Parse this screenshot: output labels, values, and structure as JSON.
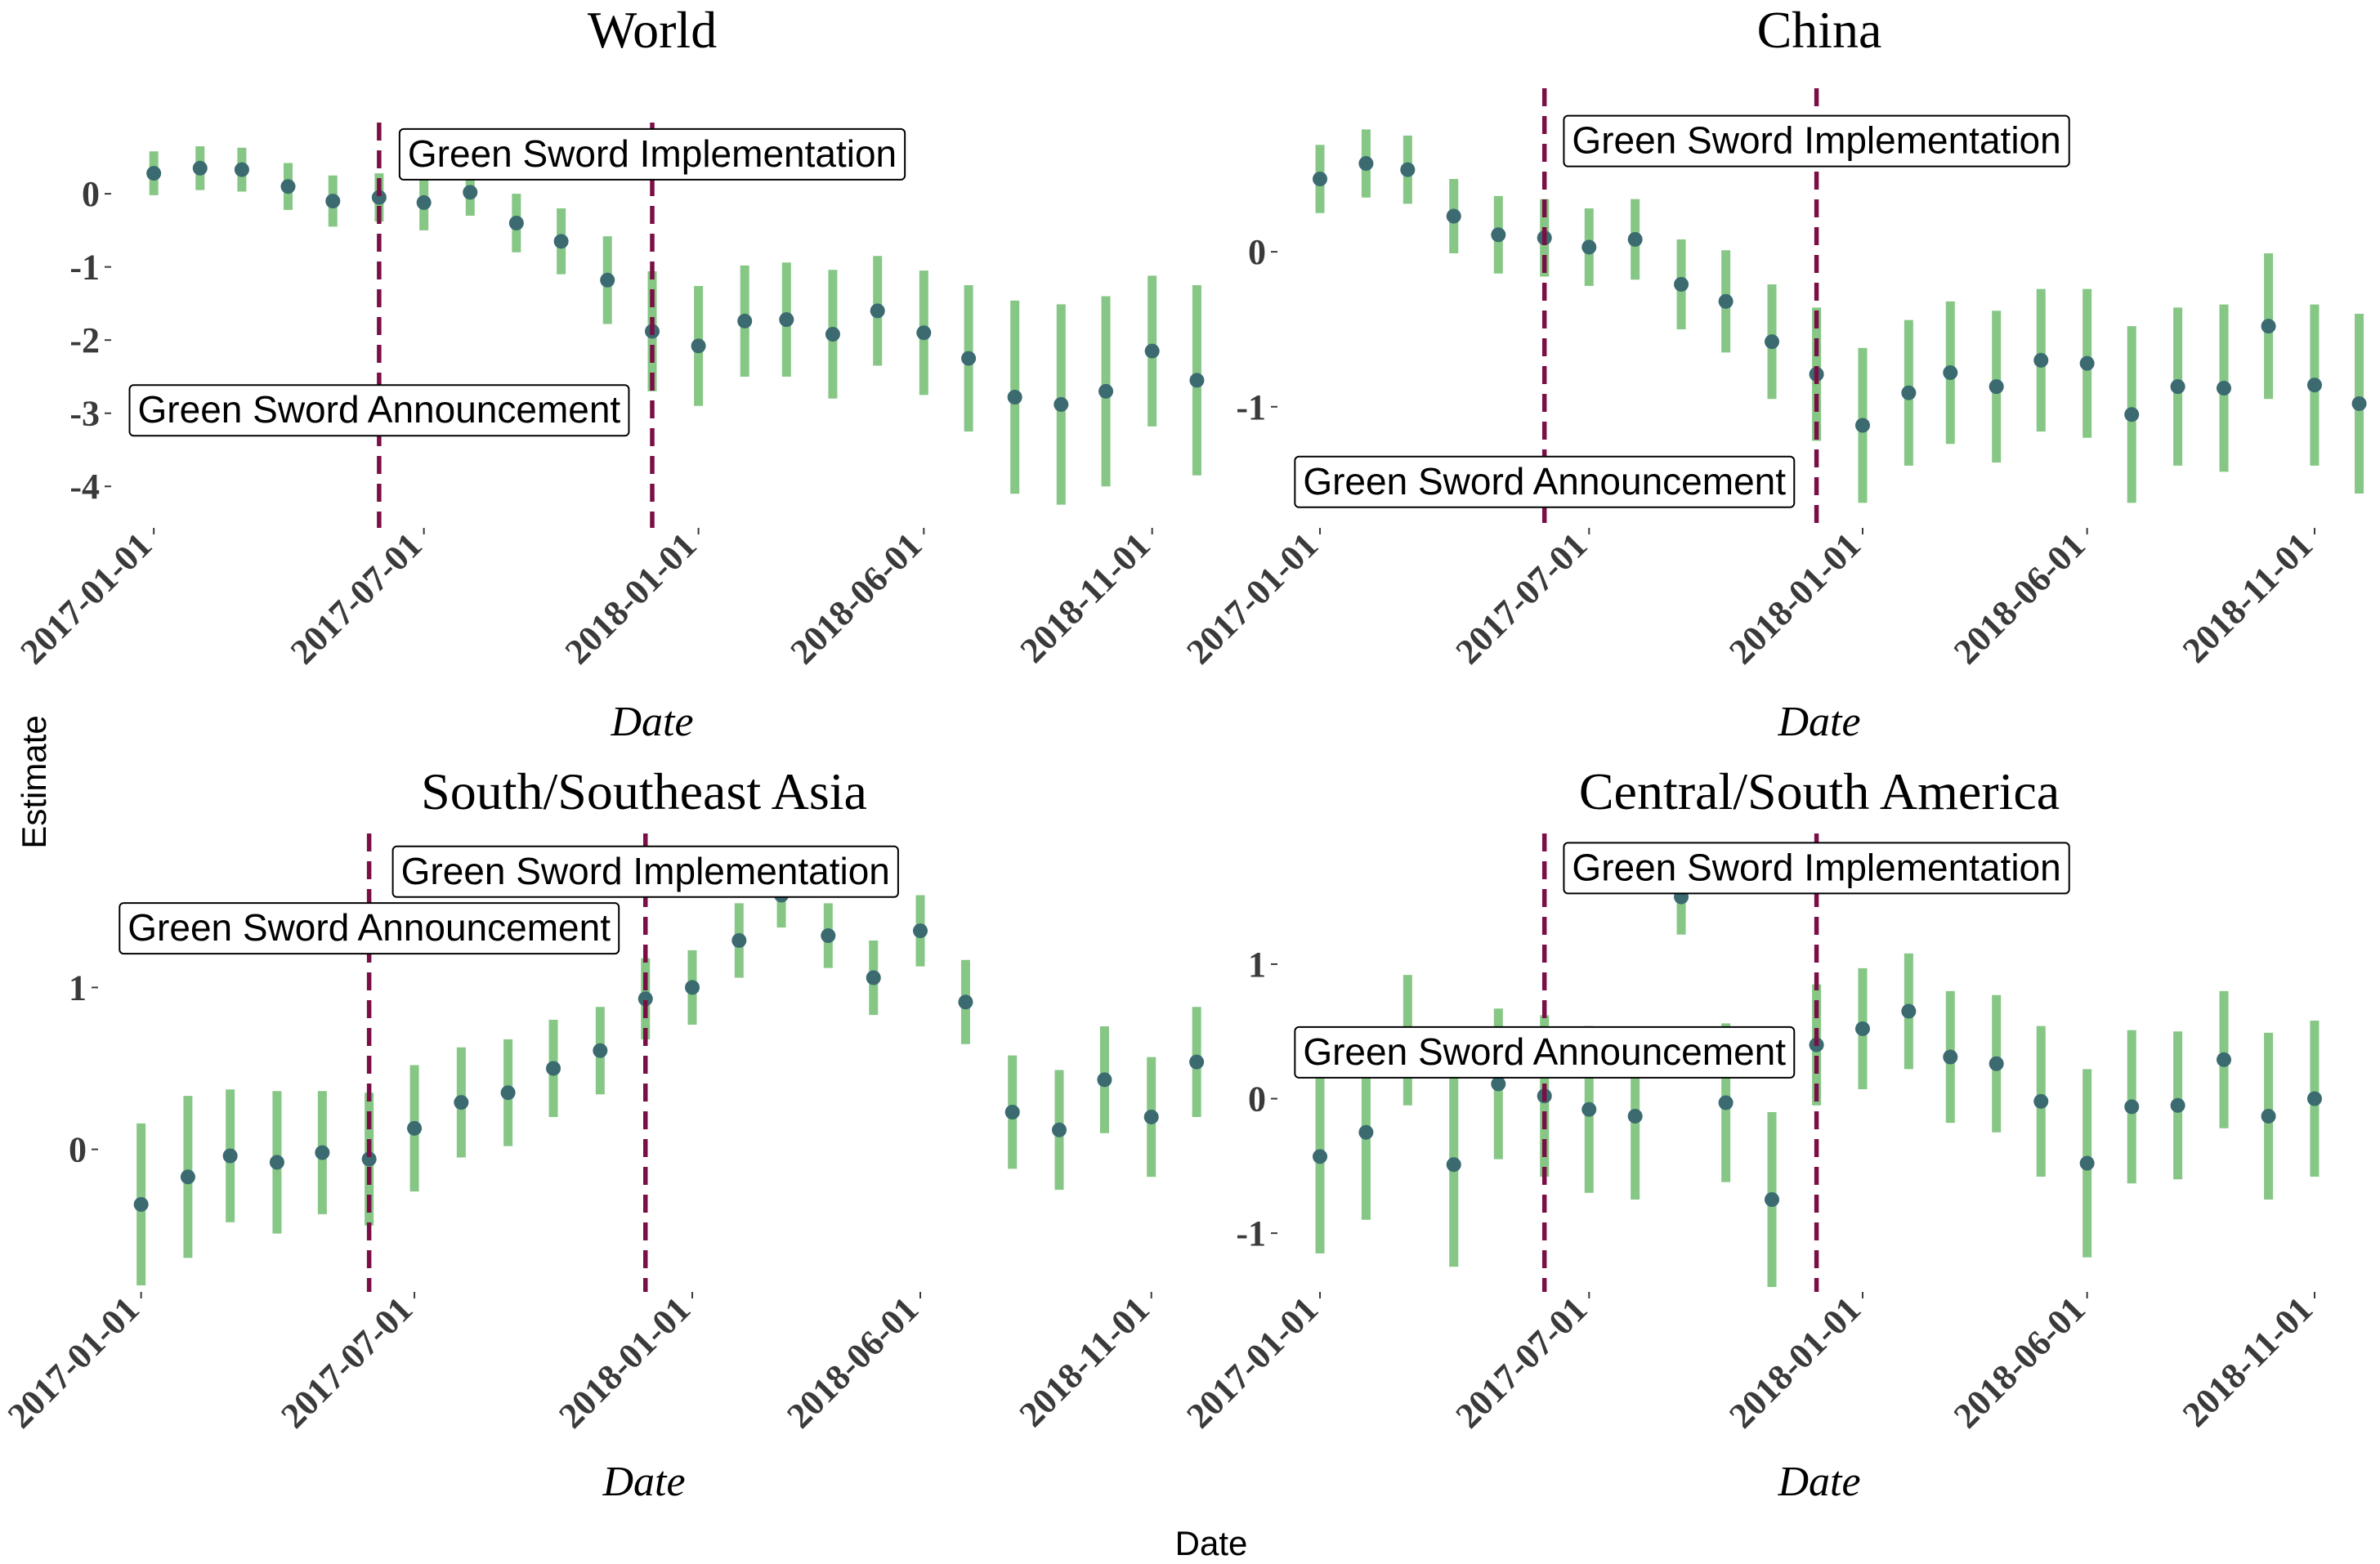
{
  "figure": {
    "y_label": "Estimate",
    "x_label": "Date"
  },
  "colors": {
    "point": "#3b6a70",
    "error_bar": "#86c785",
    "vline": "#7a0f45",
    "axis_text": "#3a3a3a"
  },
  "chart_data": [
    {
      "type": "scatter",
      "title": "World",
      "xlabel": "Date",
      "ylabel": "Estimate",
      "ylim": [
        -4.5,
        0.75
      ],
      "yticks": [
        0,
        -1,
        -2,
        -3,
        -4
      ],
      "ytick_labels": [
        "0",
        "-1",
        "-2",
        "-3",
        "-4"
      ],
      "xlim": [
        "2016-12-10",
        "2018-12-15"
      ],
      "xticks": [
        "2017-01-01",
        "2017-07-01",
        "2018-01-01",
        "2018-06-01",
        "2018-11-01"
      ],
      "vlines": [
        "2017-06-01",
        "2017-12-01"
      ],
      "annotations": [
        {
          "text": "Green Sword Implementation",
          "x": "2017-12-01",
          "y": 0.55
        },
        {
          "text": "Green Sword Announcement",
          "x": "2017-06-01",
          "y": -2.95
        }
      ],
      "series": [
        {
          "x": [
            "2017-01-01",
            "2017-02-01",
            "2017-03-01",
            "2017-04-01",
            "2017-05-01",
            "2017-06-01",
            "2017-07-01",
            "2017-08-01",
            "2017-09-01",
            "2017-10-01",
            "2017-11-01",
            "2017-12-01",
            "2018-01-01",
            "2018-02-01",
            "2018-03-01",
            "2018-04-01",
            "2018-05-01",
            "2018-06-01",
            "2018-07-01",
            "2018-08-01",
            "2018-09-01",
            "2018-10-01",
            "2018-11-01",
            "2018-12-01"
          ],
          "y": [
            0.28,
            0.35,
            0.33,
            0.1,
            -0.1,
            -0.05,
            -0.12,
            0.02,
            -0.4,
            -0.65,
            -1.18,
            -1.88,
            -2.08,
            -1.74,
            -1.72,
            -1.92,
            -1.6,
            -1.9,
            -2.25,
            -2.78,
            -2.88,
            -2.7,
            -2.15,
            -2.55
          ],
          "lower": [
            -0.02,
            0.05,
            0.03,
            -0.22,
            -0.45,
            -0.38,
            -0.5,
            -0.3,
            -0.8,
            -1.1,
            -1.78,
            -2.7,
            -2.9,
            -2.5,
            -2.5,
            -2.8,
            -2.35,
            -2.75,
            -3.25,
            -4.1,
            -4.25,
            -4.0,
            -3.18,
            -3.85
          ],
          "upper": [
            0.58,
            0.65,
            0.63,
            0.42,
            0.25,
            0.28,
            0.26,
            0.34,
            0.0,
            -0.2,
            -0.58,
            -1.06,
            -1.26,
            -0.98,
            -0.94,
            -1.04,
            -0.85,
            -1.05,
            -1.25,
            -1.46,
            -1.51,
            -1.4,
            -1.12,
            -1.25
          ]
        }
      ]
    },
    {
      "type": "scatter",
      "title": "China",
      "xlabel": "Date",
      "ylabel": "Estimate",
      "ylim": [
        -1.75,
        0.95
      ],
      "yticks": [
        0,
        -1
      ],
      "ytick_labels": [
        "0",
        "-1"
      ],
      "xlim": [
        "2016-12-10",
        "2018-12-15"
      ],
      "xticks": [
        "2017-01-01",
        "2017-07-01",
        "2018-01-01",
        "2018-06-01",
        "2018-11-01"
      ],
      "vlines": [
        "2017-06-01",
        "2017-12-01"
      ],
      "annotations": [
        {
          "text": "Green Sword Implementation",
          "x": "2017-12-01",
          "y": 0.72
        },
        {
          "text": "Green Sword Announcement",
          "x": "2017-06-01",
          "y": -1.48
        }
      ],
      "series": [
        {
          "x": [
            "2017-01-01",
            "2017-02-01",
            "2017-03-01",
            "2017-04-01",
            "2017-05-01",
            "2017-06-01",
            "2017-07-01",
            "2017-08-01",
            "2017-09-01",
            "2017-10-01",
            "2017-11-01",
            "2017-12-01",
            "2018-01-01",
            "2018-02-01",
            "2018-03-01",
            "2018-04-01",
            "2018-05-01",
            "2018-06-01",
            "2018-07-01",
            "2018-08-01",
            "2018-09-01",
            "2018-10-01",
            "2018-11-01",
            "2018-12-01"
          ],
          "y": [
            0.47,
            0.57,
            0.53,
            0.23,
            0.11,
            0.09,
            0.03,
            0.08,
            -0.21,
            -0.32,
            -0.58,
            -0.79,
            -1.12,
            -0.91,
            -0.78,
            -0.87,
            -0.7,
            -0.72,
            -1.05,
            -0.87,
            -0.88,
            -0.48,
            -0.86,
            -0.98
          ],
          "lower": [
            0.25,
            0.35,
            0.31,
            -0.01,
            -0.14,
            -0.16,
            -0.22,
            -0.18,
            -0.5,
            -0.65,
            -0.95,
            -1.22,
            -1.62,
            -1.38,
            -1.24,
            -1.36,
            -1.16,
            -1.2,
            -1.62,
            -1.38,
            -1.42,
            -0.95,
            -1.38,
            -1.56
          ],
          "upper": [
            0.69,
            0.79,
            0.75,
            0.47,
            0.36,
            0.34,
            0.28,
            0.34,
            0.08,
            0.01,
            -0.21,
            -0.36,
            -0.62,
            -0.44,
            -0.32,
            -0.38,
            -0.24,
            -0.24,
            -0.48,
            -0.36,
            -0.34,
            -0.01,
            -0.34,
            -0.4
          ]
        }
      ]
    },
    {
      "type": "scatter",
      "title": "South/Southeast Asia",
      "xlabel": "Date",
      "ylabel": "Estimate",
      "ylim": [
        -0.85,
        1.85
      ],
      "yticks": [
        1,
        0
      ],
      "ytick_labels": [
        "1",
        "0"
      ],
      "xlim": [
        "2016-12-10",
        "2018-12-15"
      ],
      "xticks": [
        "2017-01-01",
        "2017-07-01",
        "2018-01-01",
        "2018-06-01",
        "2018-11-01"
      ],
      "vlines": [
        "2017-06-01",
        "2017-12-01"
      ],
      "annotations": [
        {
          "text": "Green Sword Implementation",
          "x": "2017-12-01",
          "y": 1.72
        },
        {
          "text": "Green Sword Announcement",
          "x": "2017-06-01",
          "y": 1.37
        }
      ],
      "series": [
        {
          "x": [
            "2017-01-01",
            "2017-02-01",
            "2017-03-01",
            "2017-04-01",
            "2017-05-01",
            "2017-06-01",
            "2017-07-01",
            "2017-08-01",
            "2017-09-01",
            "2017-10-01",
            "2017-11-01",
            "2017-12-01",
            "2018-01-01",
            "2018-02-01",
            "2018-03-01",
            "2018-04-01",
            "2018-05-01",
            "2018-06-01",
            "2018-07-01",
            "2018-08-01",
            "2018-09-01",
            "2018-10-01",
            "2018-11-01",
            "2018-12-01"
          ],
          "y": [
            -0.34,
            -0.17,
            -0.04,
            -0.08,
            -0.02,
            -0.06,
            0.13,
            0.29,
            0.35,
            0.5,
            0.61,
            0.93,
            1.0,
            1.29,
            1.57,
            1.32,
            1.06,
            1.35,
            0.91,
            0.23,
            0.12,
            0.43,
            0.2,
            0.54
          ],
          "lower": [
            -0.84,
            -0.67,
            -0.45,
            -0.52,
            -0.4,
            -0.47,
            -0.26,
            -0.05,
            0.02,
            0.2,
            0.34,
            0.68,
            0.77,
            1.06,
            1.37,
            1.12,
            0.83,
            1.13,
            0.65,
            -0.12,
            -0.25,
            0.1,
            -0.17,
            0.2
          ],
          "upper": [
            0.16,
            0.33,
            0.37,
            0.36,
            0.36,
            0.35,
            0.52,
            0.63,
            0.68,
            0.8,
            0.88,
            1.18,
            1.23,
            1.52,
            1.77,
            1.52,
            1.29,
            1.57,
            1.17,
            0.58,
            0.49,
            0.76,
            0.57,
            0.88
          ]
        }
      ]
    },
    {
      "type": "scatter",
      "title": "Central/South America",
      "xlabel": "Date",
      "ylabel": "Estimate",
      "ylim": [
        -1.4,
        1.85
      ],
      "yticks": [
        1,
        0,
        -1
      ],
      "ytick_labels": [
        "1",
        "0",
        "-1"
      ],
      "xlim": [
        "2016-12-10",
        "2018-12-15"
      ],
      "xticks": [
        "2017-01-01",
        "2017-07-01",
        "2018-01-01",
        "2018-06-01",
        "2018-11-01"
      ],
      "vlines": [
        "2017-06-01",
        "2017-12-01"
      ],
      "annotations": [
        {
          "text": "Green Sword Implementation",
          "x": "2017-12-01",
          "y": 1.72
        },
        {
          "text": "Green Sword Announcement",
          "x": "2017-06-01",
          "y": 0.35
        }
      ],
      "series": [
        {
          "x": [
            "2017-01-01",
            "2017-02-01",
            "2017-03-01",
            "2017-04-01",
            "2017-05-01",
            "2017-06-01",
            "2017-07-01",
            "2017-08-01",
            "2017-09-01",
            "2017-10-01",
            "2017-11-01",
            "2017-12-01",
            "2018-01-01",
            "2018-02-01",
            "2018-03-01",
            "2018-04-01",
            "2018-05-01",
            "2018-06-01",
            "2018-07-01",
            "2018-08-01",
            "2018-09-01",
            "2018-10-01",
            "2018-11-01",
            "2018-12-01"
          ],
          "y": [
            -0.43,
            -0.25,
            0.3,
            -0.49,
            0.11,
            0.02,
            -0.08,
            -0.13,
            1.5,
            -0.03,
            -0.75,
            0.4,
            0.52,
            0.65,
            0.31,
            0.26,
            -0.02,
            -0.48,
            -0.06,
            -0.05,
            0.29,
            -0.13,
            0.0,
            null
          ],
          "lower": [
            -1.15,
            -0.9,
            -0.05,
            -1.25,
            -0.45,
            -0.58,
            -0.7,
            -0.75,
            1.22,
            -0.62,
            -1.4,
            -0.05,
            0.07,
            0.22,
            -0.18,
            -0.25,
            -0.58,
            -1.18,
            -0.63,
            -0.6,
            -0.22,
            -0.75,
            -0.58,
            null
          ],
          "upper": [
            0.29,
            0.4,
            0.92,
            0.27,
            0.67,
            0.62,
            0.54,
            0.49,
            1.78,
            0.56,
            -0.1,
            0.85,
            0.97,
            1.08,
            0.8,
            0.77,
            0.54,
            0.22,
            0.51,
            0.5,
            0.8,
            0.49,
            0.58,
            null
          ]
        }
      ]
    }
  ]
}
